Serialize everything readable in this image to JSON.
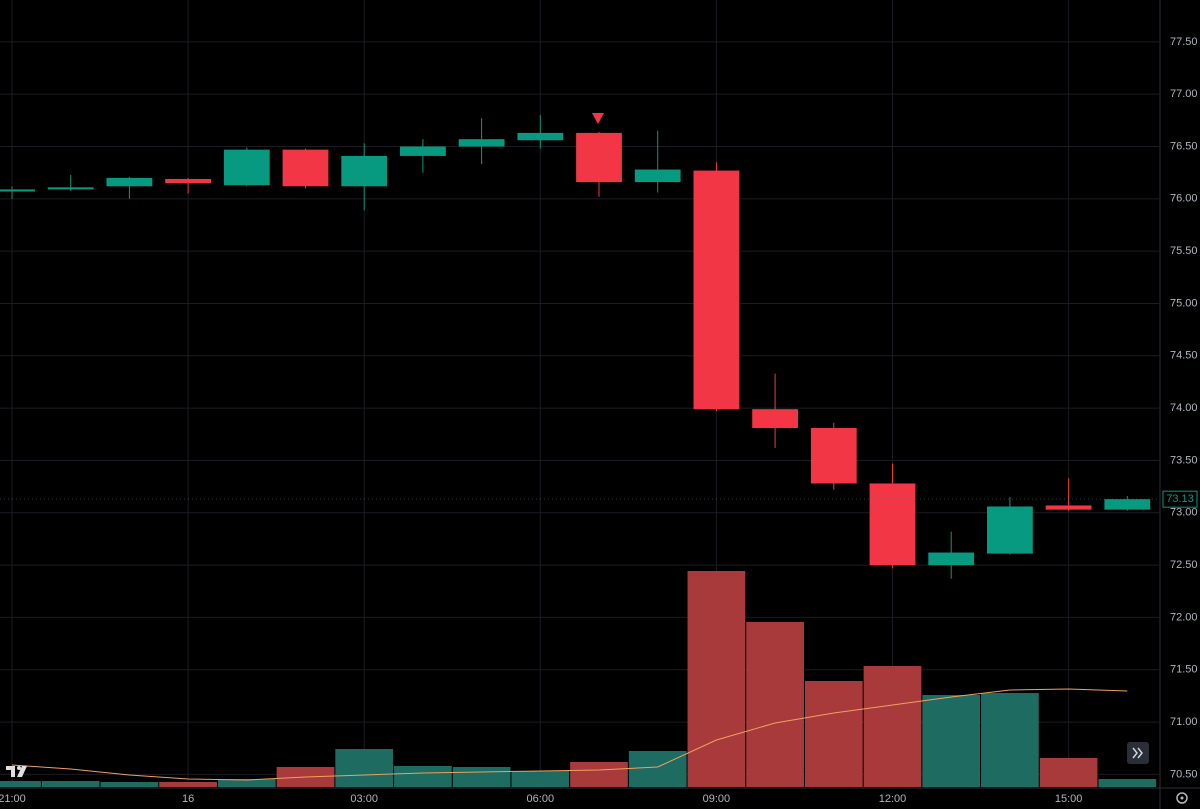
{
  "chart_data": {
    "type": "candlestick",
    "categories": [
      "21:00",
      null,
      null,
      "16",
      null,
      null,
      "03:00",
      null,
      null,
      "06:00",
      null,
      null,
      "09:00",
      null,
      null,
      "12:00",
      null,
      null,
      "15:00",
      null
    ],
    "open": [
      76.07,
      76.09,
      76.12,
      76.19,
      76.13,
      76.47,
      76.12,
      76.41,
      76.5,
      76.56,
      76.63,
      76.16,
      76.27,
      73.99,
      73.81,
      73.28,
      72.5,
      72.61,
      73.07,
      73.03
    ],
    "high": [
      76.12,
      76.23,
      76.21,
      76.2,
      76.49,
      76.48,
      76.53,
      76.57,
      76.77,
      76.8,
      76.64,
      76.65,
      76.35,
      74.33,
      73.86,
      73.47,
      72.82,
      73.15,
      73.33,
      73.16
    ],
    "low": [
      76.0,
      76.08,
      76.0,
      76.05,
      76.12,
      76.1,
      75.89,
      76.25,
      76.33,
      76.48,
      76.02,
      76.06,
      73.97,
      73.62,
      73.22,
      72.47,
      72.37,
      72.6,
      73.02,
      73.02
    ],
    "close": [
      76.09,
      76.11,
      76.2,
      76.15,
      76.47,
      76.12,
      76.41,
      76.5,
      76.57,
      76.63,
      76.16,
      76.28,
      73.99,
      73.81,
      73.28,
      72.5,
      72.62,
      73.06,
      73.03,
      73.13
    ],
    "volume": [
      6,
      6,
      5,
      5,
      8,
      20,
      38,
      21,
      20,
      16,
      25,
      36,
      216,
      165,
      106,
      121,
      92,
      94,
      29,
      8
    ],
    "volume_ma": [
      22,
      18,
      12,
      8,
      7,
      10,
      12,
      14,
      15,
      16,
      17,
      20,
      47,
      64,
      74,
      82,
      90,
      97,
      98,
      96
    ],
    "up_color": "#089981",
    "down_color": "#f23645",
    "volume_up_color": "#1e6b61",
    "volume_down_color": "#a83a3c",
    "ma_color": "#f0a060",
    "ylim": [
      70.37,
      77.9
    ],
    "yticks": [
      {
        "value": 70.5,
        "label": "70.50"
      },
      {
        "value": 71,
        "label": "71.00"
      },
      {
        "value": 71.5,
        "label": "71.50"
      },
      {
        "value": 72,
        "label": "72.00"
      },
      {
        "value": 72.5,
        "label": "72.50"
      },
      {
        "value": 73,
        "label": "73.00"
      },
      {
        "value": 73.5,
        "label": "73.50"
      },
      {
        "value": 74,
        "label": "74.00"
      },
      {
        "value": 74.5,
        "label": "74.50"
      },
      {
        "value": 75,
        "label": "75.00"
      },
      {
        "value": 75.5,
        "label": "75.50"
      },
      {
        "value": 76,
        "label": "76.00"
      },
      {
        "value": 76.5,
        "label": "76.50"
      },
      {
        "value": 77,
        "label": "77.00"
      },
      {
        "value": 77.5,
        "label": "77.50"
      }
    ],
    "volume_lim": [
      0,
      250
    ],
    "grid": true
  }
}
